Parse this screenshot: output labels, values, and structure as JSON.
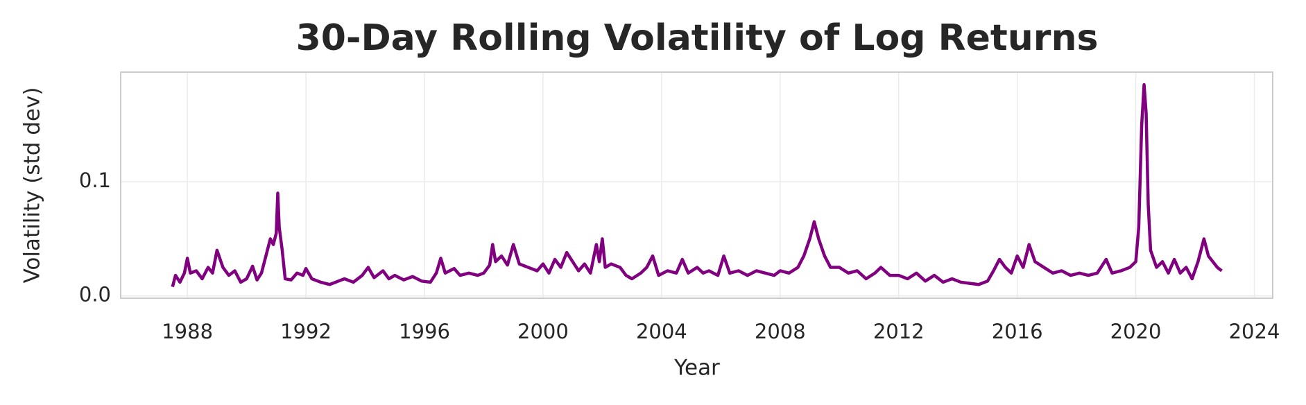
{
  "chart_data": {
    "type": "line",
    "title": "30-Day Rolling Volatility of Log Returns",
    "x_label": "Year",
    "y_label": "Volatility (std dev)",
    "xlim": [
      1985.75,
      2024.62
    ],
    "ylim": [
      -0.002,
      0.196
    ],
    "xticks": [
      1988,
      1992,
      1996,
      2000,
      2004,
      2008,
      2012,
      2016,
      2020,
      2024
    ],
    "yticks": [
      {
        "value": 0,
        "label": "0.0"
      },
      0.1
    ],
    "grid": true,
    "x": [
      1987.5,
      1987.6,
      1987.75,
      1987.9,
      1988.0,
      1988.1,
      1988.3,
      1988.5,
      1988.7,
      1988.85,
      1989.0,
      1989.2,
      1989.4,
      1989.6,
      1989.8,
      1990.0,
      1990.2,
      1990.35,
      1990.5,
      1990.7,
      1990.8,
      1990.9,
      1991.0,
      1991.05,
      1991.1,
      1991.2,
      1991.3,
      1991.5,
      1991.7,
      1991.9,
      1992.0,
      1992.2,
      1992.5,
      1992.8,
      1993.0,
      1993.3,
      1993.6,
      1993.9,
      1994.1,
      1994.3,
      1994.6,
      1994.8,
      1995.0,
      1995.3,
      1995.6,
      1995.9,
      1996.2,
      1996.4,
      1996.55,
      1996.7,
      1997.0,
      1997.2,
      1997.5,
      1997.8,
      1998.0,
      1998.2,
      1998.3,
      1998.4,
      1998.6,
      1998.8,
      1999.0,
      1999.2,
      1999.5,
      1999.8,
      2000.0,
      2000.2,
      2000.4,
      2000.6,
      2000.8,
      2001.0,
      2001.2,
      2001.4,
      2001.6,
      2001.8,
      2001.9,
      2002.0,
      2002.1,
      2002.3,
      2002.6,
      2002.8,
      2003.0,
      2003.3,
      2003.5,
      2003.7,
      2003.9,
      2004.2,
      2004.5,
      2004.7,
      2004.9,
      2005.2,
      2005.4,
      2005.6,
      2005.9,
      2006.1,
      2006.3,
      2006.6,
      2006.9,
      2007.2,
      2007.5,
      2007.8,
      2008.0,
      2008.3,
      2008.6,
      2008.8,
      2009.0,
      2009.15,
      2009.3,
      2009.5,
      2009.7,
      2010.0,
      2010.3,
      2010.6,
      2010.9,
      2011.2,
      2011.4,
      2011.7,
      2012.0,
      2012.3,
      2012.6,
      2012.9,
      2013.2,
      2013.5,
      2013.8,
      2014.1,
      2014.4,
      2014.7,
      2015.0,
      2015.2,
      2015.4,
      2015.6,
      2015.8,
      2016.0,
      2016.2,
      2016.4,
      2016.6,
      2016.9,
      2017.2,
      2017.5,
      2017.8,
      2018.1,
      2018.4,
      2018.7,
      2019.0,
      2019.2,
      2019.5,
      2019.8,
      2020.0,
      2020.1,
      2020.2,
      2020.28,
      2020.35,
      2020.42,
      2020.5,
      2020.7,
      2020.9,
      2021.1,
      2021.3,
      2021.5,
      2021.7,
      2021.9,
      2022.1,
      2022.3,
      2022.45,
      2022.6,
      2022.75,
      2022.9
    ],
    "series": [
      {
        "color": "#800080",
        "values": [
          0.008,
          0.018,
          0.012,
          0.02,
          0.033,
          0.02,
          0.022,
          0.015,
          0.025,
          0.02,
          0.04,
          0.025,
          0.018,
          0.022,
          0.012,
          0.015,
          0.026,
          0.014,
          0.02,
          0.04,
          0.05,
          0.045,
          0.055,
          0.09,
          0.06,
          0.04,
          0.015,
          0.014,
          0.02,
          0.018,
          0.024,
          0.015,
          0.012,
          0.01,
          0.012,
          0.015,
          0.012,
          0.018,
          0.025,
          0.016,
          0.022,
          0.015,
          0.018,
          0.014,
          0.017,
          0.013,
          0.012,
          0.02,
          0.033,
          0.02,
          0.024,
          0.018,
          0.02,
          0.018,
          0.02,
          0.027,
          0.045,
          0.03,
          0.035,
          0.027,
          0.045,
          0.028,
          0.025,
          0.022,
          0.028,
          0.02,
          0.032,
          0.025,
          0.038,
          0.03,
          0.022,
          0.028,
          0.02,
          0.045,
          0.03,
          0.05,
          0.025,
          0.028,
          0.025,
          0.018,
          0.015,
          0.02,
          0.025,
          0.035,
          0.018,
          0.022,
          0.02,
          0.032,
          0.02,
          0.025,
          0.02,
          0.022,
          0.018,
          0.035,
          0.02,
          0.022,
          0.018,
          0.022,
          0.02,
          0.018,
          0.022,
          0.02,
          0.025,
          0.035,
          0.05,
          0.065,
          0.05,
          0.035,
          0.025,
          0.025,
          0.02,
          0.022,
          0.015,
          0.02,
          0.025,
          0.018,
          0.018,
          0.015,
          0.02,
          0.013,
          0.018,
          0.012,
          0.015,
          0.012,
          0.011,
          0.01,
          0.013,
          0.022,
          0.032,
          0.025,
          0.02,
          0.035,
          0.025,
          0.045,
          0.03,
          0.025,
          0.02,
          0.022,
          0.018,
          0.02,
          0.018,
          0.02,
          0.032,
          0.02,
          0.022,
          0.025,
          0.03,
          0.06,
          0.15,
          0.185,
          0.16,
          0.08,
          0.04,
          0.025,
          0.03,
          0.02,
          0.032,
          0.02,
          0.025,
          0.015,
          0.03,
          0.05,
          0.035,
          0.03,
          0.025,
          0.022
        ]
      }
    ]
  }
}
